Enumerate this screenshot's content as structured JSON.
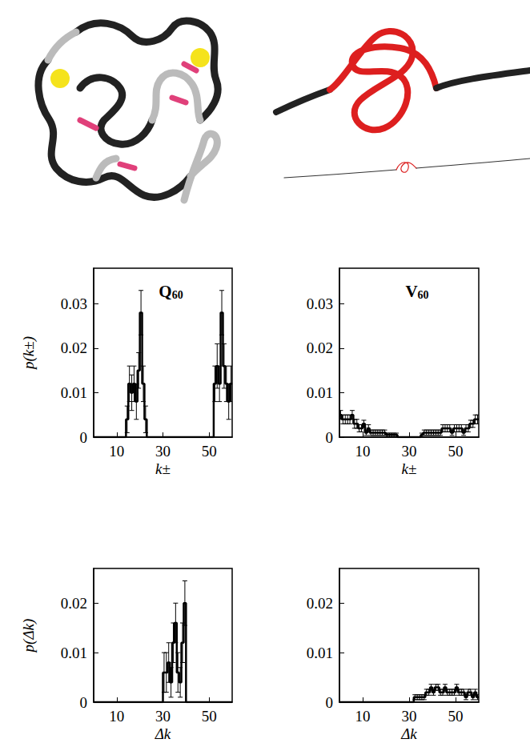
{
  "chart_data": [
    {
      "type": "histogram",
      "title": "Q60",
      "x_label": "k±",
      "y_label": "p(k±)",
      "color": "#000000",
      "bins": [
        0,
        1,
        2,
        3,
        4,
        5,
        6,
        7,
        8,
        9,
        10,
        11,
        12,
        13,
        14,
        15,
        16,
        17,
        18,
        19,
        20,
        21,
        22,
        23,
        24,
        25,
        26,
        27,
        28,
        29,
        30,
        31,
        32,
        33,
        34,
        35,
        36,
        37,
        38,
        39,
        40,
        41,
        42,
        43,
        44,
        45,
        46,
        47,
        48,
        49,
        50,
        51,
        52,
        53,
        54,
        55,
        56,
        57,
        58,
        59,
        60
      ],
      "counts": [
        0,
        0,
        0,
        0,
        0,
        0,
        0,
        0,
        0,
        0,
        0,
        0,
        0,
        0,
        0.004,
        0.012,
        0.01,
        0.012,
        0.008,
        0.015,
        0.028,
        0.012,
        0.004,
        0,
        0,
        0,
        0,
        0,
        0,
        0,
        0,
        0,
        0,
        0,
        0,
        0,
        0,
        0,
        0,
        0,
        0,
        0,
        0,
        0,
        0,
        0,
        0,
        0,
        0,
        0,
        0,
        0,
        0.012,
        0.016,
        0.012,
        0.028,
        0.016,
        0.012,
        0.008,
        0.012
      ],
      "errors": [
        null,
        null,
        null,
        null,
        null,
        null,
        null,
        null,
        null,
        null,
        null,
        null,
        null,
        null,
        0.003,
        0.004,
        0.004,
        0.004,
        0.004,
        0.004,
        0.005,
        0.004,
        0.003,
        null,
        null,
        null,
        null,
        null,
        null,
        null,
        null,
        null,
        null,
        null,
        null,
        null,
        null,
        null,
        null,
        null,
        null,
        null,
        null,
        null,
        null,
        null,
        null,
        null,
        null,
        null,
        null,
        null,
        0.004,
        0.005,
        0.004,
        0.005,
        0.005,
        0.004,
        0.004,
        0.004
      ],
      "xlim": [
        0,
        60
      ],
      "xticks": [
        10,
        30,
        50
      ],
      "ylim": [
        0,
        0.038
      ],
      "yticks": [
        0,
        0.01,
        0.02,
        0.03
      ]
    },
    {
      "type": "histogram",
      "title": "V60",
      "x_label": "k±",
      "color": "#000000",
      "bins": [
        0,
        1,
        2,
        3,
        4,
        5,
        6,
        7,
        8,
        9,
        10,
        11,
        12,
        13,
        14,
        15,
        16,
        17,
        18,
        19,
        20,
        21,
        22,
        23,
        24,
        25,
        26,
        27,
        28,
        29,
        30,
        31,
        32,
        33,
        34,
        35,
        36,
        37,
        38,
        39,
        40,
        41,
        42,
        43,
        44,
        45,
        46,
        47,
        48,
        49,
        50,
        51,
        52,
        53,
        54,
        55,
        56,
        57,
        58,
        59,
        60
      ],
      "counts": [
        0.005,
        0.004,
        0.004,
        0.004,
        0.004,
        0.005,
        0.003,
        0.003,
        0.002,
        0.002,
        0.003,
        0.001,
        0.002,
        0.001,
        0.001,
        0.001,
        0.001,
        0.001,
        0.001,
        0.001,
        0.0005,
        0.0005,
        0.0005,
        0.0005,
        0.0005,
        0,
        0,
        0,
        0,
        0,
        0,
        0,
        0,
        0,
        0,
        0.0005,
        0.001,
        0.001,
        0.001,
        0.001,
        0.001,
        0.001,
        0.001,
        0.001,
        0.002,
        0.002,
        0.002,
        0.002,
        0.001,
        0.002,
        0.002,
        0.002,
        0.002,
        0.001,
        0.002,
        0.002,
        0.003,
        0.003,
        0.004,
        0.004
      ],
      "errors": [
        0.001,
        0.001,
        0.001,
        0.001,
        0.001,
        0.001,
        0.001,
        0.001,
        0.0008,
        0.0008,
        0.0008,
        0.0006,
        0.0008,
        0.0006,
        0.0006,
        0.0006,
        0.0006,
        0.0006,
        0.0006,
        0.0006,
        0.0004,
        0.0004,
        0.0004,
        0.0004,
        0.0004,
        null,
        null,
        null,
        null,
        null,
        null,
        null,
        null,
        null,
        null,
        0.0004,
        0.0006,
        0.0006,
        0.0006,
        0.0006,
        0.0006,
        0.0006,
        0.0006,
        0.0006,
        0.0008,
        0.0008,
        0.0008,
        0.0008,
        0.0006,
        0.0008,
        0.0008,
        0.0008,
        0.0008,
        0.0006,
        0.0008,
        0.0008,
        0.0008,
        0.0008,
        0.001,
        0.001
      ],
      "xlim": [
        0,
        60
      ],
      "xticks": [
        10,
        30,
        50
      ],
      "ylim": [
        0,
        0.038
      ],
      "yticks": [
        0,
        0.01,
        0.02,
        0.03
      ]
    },
    {
      "type": "histogram",
      "x_label": "Δk",
      "y_label": "p(Δk)",
      "color": "#000000",
      "bins": [
        0,
        1,
        2,
        3,
        4,
        5,
        6,
        7,
        8,
        9,
        10,
        11,
        12,
        13,
        14,
        15,
        16,
        17,
        18,
        19,
        20,
        21,
        22,
        23,
        24,
        25,
        26,
        27,
        28,
        29,
        30,
        31,
        32,
        33,
        34,
        35,
        36,
        37,
        38,
        39,
        40,
        41,
        42,
        43,
        44,
        45,
        46,
        47,
        48,
        49,
        50,
        51,
        52,
        53,
        54,
        55,
        56,
        57,
        58,
        59,
        60
      ],
      "counts": [
        0,
        0,
        0,
        0,
        0,
        0,
        0,
        0,
        0,
        0,
        0,
        0,
        0,
        0,
        0,
        0,
        0,
        0,
        0,
        0,
        0,
        0,
        0,
        0,
        0,
        0,
        0,
        0,
        0,
        0,
        0.006,
        0.006,
        0.008,
        0.004,
        0.012,
        0.016,
        0.006,
        0.004,
        0.012,
        0.02,
        0,
        0,
        0,
        0,
        0,
        0,
        0,
        0,
        0,
        0,
        0,
        0,
        0,
        0,
        0,
        0,
        0,
        0,
        0,
        0
      ],
      "errors": [
        null,
        null,
        null,
        null,
        null,
        null,
        null,
        null,
        null,
        null,
        null,
        null,
        null,
        null,
        null,
        null,
        null,
        null,
        null,
        null,
        null,
        null,
        null,
        null,
        null,
        null,
        null,
        null,
        null,
        null,
        0.004,
        0.004,
        0.004,
        0.003,
        0.004,
        0.004,
        0.004,
        0.003,
        0.004,
        0.0045,
        null,
        null,
        null,
        null,
        null,
        null,
        null,
        null,
        null,
        null,
        null,
        null,
        null,
        null,
        null,
        null,
        null,
        null,
        null,
        null
      ],
      "xlim": [
        0,
        60
      ],
      "xticks": [
        10,
        30,
        50
      ],
      "ylim": [
        0,
        0.027
      ],
      "yticks": [
        0,
        0.01,
        0.02
      ]
    },
    {
      "type": "histogram",
      "x_label": "Δk",
      "color": "#000000",
      "bins": [
        0,
        1,
        2,
        3,
        4,
        5,
        6,
        7,
        8,
        9,
        10,
        11,
        12,
        13,
        14,
        15,
        16,
        17,
        18,
        19,
        20,
        21,
        22,
        23,
        24,
        25,
        26,
        27,
        28,
        29,
        30,
        31,
        32,
        33,
        34,
        35,
        36,
        37,
        38,
        39,
        40,
        41,
        42,
        43,
        44,
        45,
        46,
        47,
        48,
        49,
        50,
        51,
        52,
        53,
        54,
        55,
        56,
        57,
        58,
        59,
        60
      ],
      "counts": [
        0,
        0,
        0,
        0,
        0,
        0,
        0,
        0,
        0,
        0,
        0,
        0,
        0,
        0,
        0,
        0,
        0,
        0,
        0,
        0,
        0,
        0,
        0,
        0,
        0,
        0,
        0,
        0,
        0,
        0,
        0,
        0,
        0.001,
        0.001,
        0.001,
        0.001,
        0.001,
        0.002,
        0.002,
        0.003,
        0.002,
        0.003,
        0.003,
        0.002,
        0.002,
        0.003,
        0.002,
        0.002,
        0.002,
        0.002,
        0.003,
        0.002,
        0.002,
        0.002,
        0.001,
        0.002,
        0.002,
        0.001,
        0.002,
        0.001
      ],
      "errors": [
        null,
        null,
        null,
        null,
        null,
        null,
        null,
        null,
        null,
        null,
        null,
        null,
        null,
        null,
        null,
        null,
        null,
        null,
        null,
        null,
        null,
        null,
        null,
        null,
        null,
        null,
        null,
        null,
        null,
        null,
        null,
        null,
        0.0005,
        0.0005,
        0.0005,
        0.0005,
        0.0005,
        0.0006,
        0.0006,
        0.0006,
        0.0006,
        0.0006,
        0.0006,
        0.0006,
        0.0006,
        0.0006,
        0.0006,
        0.0006,
        0.0006,
        0.0006,
        0.0006,
        0.0006,
        0.0006,
        0.0006,
        0.0005,
        0.0006,
        0.0006,
        0.0005,
        0.0006,
        0.0005
      ],
      "xlim": [
        0,
        60
      ],
      "xticks": [
        10,
        30,
        50
      ],
      "ylim": [
        0,
        0.027
      ],
      "yticks": [
        0,
        0.01,
        0.02
      ]
    }
  ]
}
